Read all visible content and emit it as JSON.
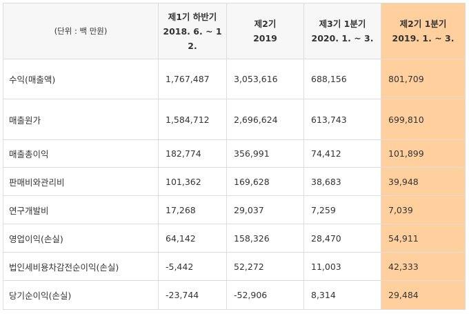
{
  "table": {
    "unit_label": "(단위 : 백 만원)",
    "headers": [
      {
        "line1": "제1기 하반기",
        "line2": "2018. 6. ~ 1",
        "line3": "2."
      },
      {
        "line1": "제2기",
        "line2": "2019",
        "line3": ""
      },
      {
        "line1": "제3기 1분기",
        "line2": "2020. 1. ~ 3.",
        "line3": ""
      },
      {
        "line1": "제2기 1분기",
        "line2": "2019. 1. ~ 3.",
        "line3": ""
      }
    ],
    "highlight_color": "#ffd09e",
    "rows": [
      {
        "label": "수익(매출액)",
        "values": [
          "1,767,487",
          "3,053,616",
          "688,156",
          "801,709"
        ]
      },
      {
        "label": "매출원가",
        "values": [
          "1,584,712",
          "2,696,624",
          "613,743",
          "699,810"
        ]
      },
      {
        "label": "매출총이익",
        "values": [
          "182,774",
          "356,991",
          "74,412",
          "101,899"
        ]
      },
      {
        "label": "판매비와관리비",
        "values": [
          "101,362",
          "169,628",
          "38,683",
          "39,948"
        ]
      },
      {
        "label": "연구개발비",
        "values": [
          "17,268",
          "29,037",
          "7,259",
          "7,039"
        ]
      },
      {
        "label": "영업이익(손실)",
        "values": [
          "64,142",
          "158,326",
          "28,470",
          "54,911"
        ]
      },
      {
        "label": "법인세비용차감전순이익(손실)",
        "values": [
          "-5,442",
          "52,272",
          "11,003",
          "42,333"
        ]
      },
      {
        "label": "당기순이익(손실)",
        "values": [
          "-23,744",
          "-52,906",
          "8,314",
          "29,484"
        ]
      }
    ]
  }
}
